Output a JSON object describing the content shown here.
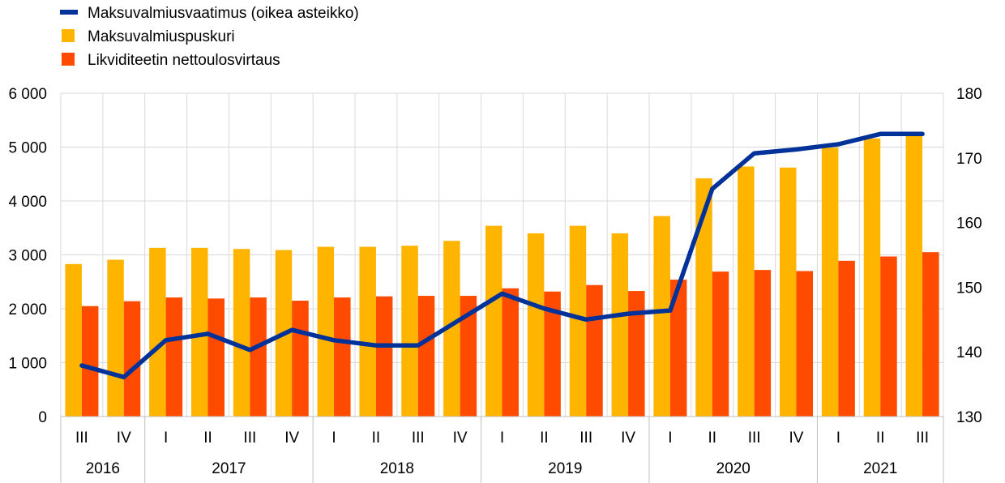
{
  "chart_data": {
    "type": "bar",
    "legend": {
      "placement": "top-left",
      "entries": [
        {
          "key": "requirement",
          "label": "Maksuvalmiusvaatimus (oikea asteikko)",
          "marker": "line"
        },
        {
          "key": "buffer",
          "label": "Maksuvalmiuspuskuri",
          "marker": "square"
        },
        {
          "key": "outflow",
          "label": "Likviditeetin nettoulosvirtaus",
          "marker": "square"
        }
      ]
    },
    "quarters": [
      "III",
      "IV",
      "I",
      "II",
      "III",
      "IV",
      "I",
      "II",
      "III",
      "IV",
      "I",
      "II",
      "III",
      "IV",
      "I",
      "II",
      "III",
      "IV",
      "I",
      "II",
      "III"
    ],
    "years": [
      {
        "label": "2016",
        "count": 2
      },
      {
        "label": "2017",
        "count": 4
      },
      {
        "label": "2018",
        "count": 4
      },
      {
        "label": "2019",
        "count": 4
      },
      {
        "label": "2020",
        "count": 4
      },
      {
        "label": "2021",
        "count": 3
      }
    ],
    "left_axis": {
      "ylim": [
        0,
        6000
      ],
      "ticks": [
        0,
        1000,
        2000,
        3000,
        4000,
        5000,
        6000
      ],
      "tick_labels": [
        "0",
        "1 000",
        "2 000",
        "3 000",
        "4 000",
        "5 000",
        "6 000"
      ]
    },
    "right_axis": {
      "ylim": [
        130,
        180
      ],
      "ticks": [
        130,
        140,
        150,
        160,
        170,
        180
      ],
      "tick_labels": [
        "130",
        "140",
        "150",
        "160",
        "170",
        "180"
      ]
    },
    "grid": true,
    "series": [
      {
        "name": "Maksuvalmiuspuskuri",
        "type": "bar",
        "axis": "left",
        "color": "#FFB400",
        "values": [
          2830,
          2910,
          3130,
          3130,
          3110,
          3090,
          3150,
          3150,
          3170,
          3260,
          3540,
          3400,
          3540,
          3400,
          3720,
          4420,
          4640,
          4620,
          4990,
          5160,
          5270
        ]
      },
      {
        "name": "Likviditeetin nettoulosvirtaus",
        "type": "bar",
        "axis": "left",
        "color": "#FF4B00",
        "values": [
          2050,
          2140,
          2210,
          2190,
          2210,
          2150,
          2210,
          2230,
          2240,
          2240,
          2380,
          2320,
          2440,
          2330,
          2540,
          2690,
          2720,
          2700,
          2890,
          2970,
          3050
        ]
      },
      {
        "name": "Maksuvalmiusvaatimus (oikea asteikko)",
        "type": "line",
        "axis": "right",
        "color": "#003299",
        "values": [
          137.9,
          136.1,
          141.8,
          142.8,
          140.3,
          143.4,
          141.8,
          141.0,
          141.0,
          145.0,
          149.0,
          146.7,
          145.0,
          145.9,
          146.4,
          165.2,
          170.7,
          171.3,
          172.1,
          173.7,
          173.7
        ]
      }
    ]
  }
}
